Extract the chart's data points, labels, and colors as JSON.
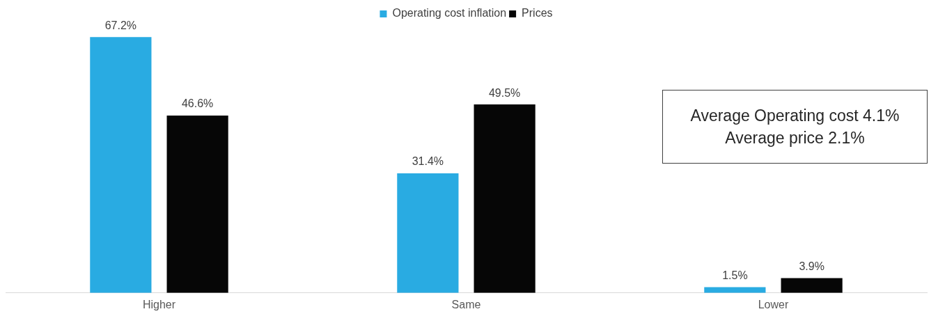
{
  "chart_data": {
    "type": "bar",
    "categories": [
      "Higher",
      "Same",
      "Lower"
    ],
    "series": [
      {
        "name": "Operating cost inflation",
        "color": "#29abe2",
        "values": [
          67.2,
          31.4,
          1.5
        ],
        "value_labels": [
          "67.2%",
          "31.4%",
          "1.5%"
        ]
      },
      {
        "name": "Prices",
        "color": "#060606",
        "values": [
          46.6,
          49.5,
          3.9
        ],
        "value_labels": [
          "46.6%",
          "49.5%",
          "3.9%"
        ]
      }
    ],
    "legend": "top",
    "grid": false,
    "annotations": [
      "Average Operating cost 4.1%",
      "Average price 2.1%"
    ]
  }
}
